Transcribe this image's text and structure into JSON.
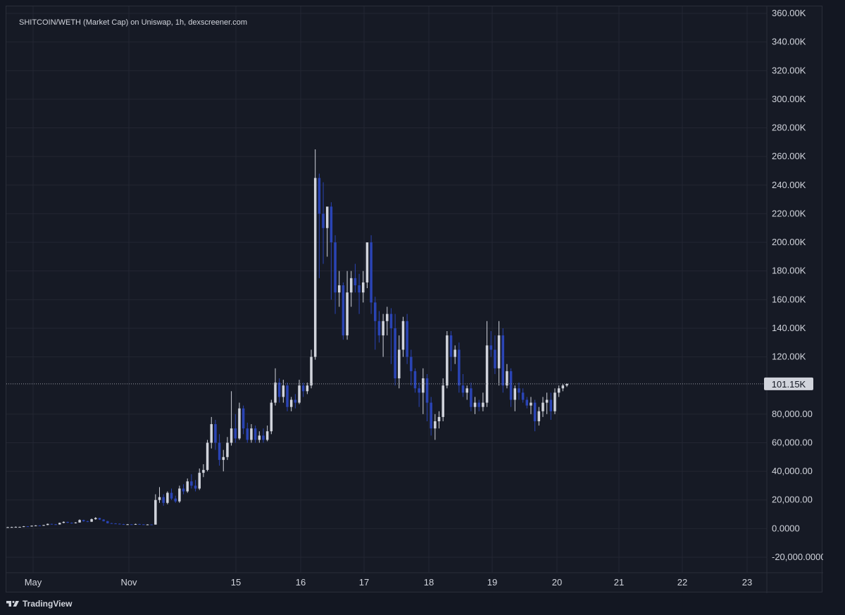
{
  "chart_title": "SHITCOIN/WETH (Market Cap) on Uniswap, 1h, dexscreener.com",
  "branding": {
    "name": "TradingView",
    "icon": "tradingview-logo-icon"
  },
  "colors": {
    "background": "#131722",
    "grid": "#232632",
    "up_candle": "#d1d4dc",
    "down_candle": "#2a44b5",
    "text": "#d1d4dc",
    "price_badge_bg": "#d1d4dc",
    "price_badge_text": "#131722"
  },
  "chart_data": {
    "type": "candlestick",
    "title": "SHITCOIN/WETH (Market Cap) on Uniswap, 1h, dexscreener.com",
    "xlabel": "",
    "ylabel": "",
    "ylim": [
      -20000,
      360000
    ],
    "grid": true,
    "x_ticks": [
      "May",
      "Nov",
      "15",
      "16",
      "17",
      "18",
      "19",
      "20",
      "21",
      "22",
      "23"
    ],
    "y_ticks": [
      {
        "value": 360000,
        "label": "360.00K"
      },
      {
        "value": 340000,
        "label": "340.00K"
      },
      {
        "value": 320000,
        "label": "320.00K"
      },
      {
        "value": 300000,
        "label": "300.00K"
      },
      {
        "value": 280000,
        "label": "280.00K"
      },
      {
        "value": 260000,
        "label": "260.00K"
      },
      {
        "value": 240000,
        "label": "240.00K"
      },
      {
        "value": 220000,
        "label": "220.00K"
      },
      {
        "value": 200000,
        "label": "200.00K"
      },
      {
        "value": 180000,
        "label": "180.00K"
      },
      {
        "value": 160000,
        "label": "160.00K"
      },
      {
        "value": 140000,
        "label": "140.00K"
      },
      {
        "value": 120000,
        "label": "120.00K"
      },
      {
        "value": 80000,
        "label": "80,000.00"
      },
      {
        "value": 60000,
        "label": "60,000.00"
      },
      {
        "value": 40000,
        "label": "40,000.00"
      },
      {
        "value": 20000,
        "label": "20,000.00"
      },
      {
        "value": 0,
        "label": "0.0000"
      },
      {
        "value": -20000,
        "label": "-20,000.0000"
      }
    ],
    "last_price": {
      "value": 101150,
      "label": "101.15K"
    },
    "ohlc": [
      [
        1000,
        1200,
        900,
        1000
      ],
      [
        1000,
        1300,
        900,
        1100
      ],
      [
        1100,
        1500,
        1000,
        1200
      ],
      [
        1200,
        1300,
        1100,
        1200
      ],
      [
        1200,
        1800,
        1100,
        1600
      ],
      [
        1600,
        1700,
        1400,
        1500
      ],
      [
        1500,
        2200,
        1400,
        2000
      ],
      [
        2000,
        2400,
        1800,
        2200
      ],
      [
        2200,
        2300,
        1900,
        2000
      ],
      [
        2000,
        2600,
        1900,
        2500
      ],
      [
        2500,
        3500,
        2400,
        3300
      ],
      [
        3300,
        3400,
        2800,
        3000
      ],
      [
        3000,
        3200,
        2700,
        2900
      ],
      [
        2900,
        4200,
        2800,
        4000
      ],
      [
        4000,
        5000,
        3800,
        4700
      ],
      [
        4700,
        4800,
        3900,
        4100
      ],
      [
        4100,
        4300,
        3500,
        3800
      ],
      [
        3800,
        4500,
        3600,
        4300
      ],
      [
        4300,
        6500,
        4200,
        6000
      ],
      [
        6000,
        6200,
        4800,
        5200
      ],
      [
        5200,
        5400,
        4500,
        4800
      ],
      [
        4800,
        7000,
        4700,
        6600
      ],
      [
        6600,
        8000,
        6200,
        7400
      ],
      [
        7400,
        7600,
        6000,
        6300
      ],
      [
        6300,
        6600,
        5000,
        5200
      ],
      [
        5200,
        5400,
        3600,
        3800
      ],
      [
        3800,
        4000,
        3400,
        3600
      ],
      [
        3600,
        3800,
        3200,
        3400
      ],
      [
        3400,
        3600,
        3000,
        3100
      ],
      [
        3100,
        3300,
        2800,
        3000
      ],
      [
        3000,
        3200,
        2800,
        3000
      ],
      [
        3000,
        3100,
        2800,
        2900
      ],
      [
        2900,
        3400,
        2700,
        3200
      ],
      [
        3200,
        3300,
        2800,
        3000
      ],
      [
        3000,
        3100,
        2600,
        2800
      ],
      [
        2800,
        3000,
        2600,
        2900
      ],
      [
        2900,
        3000,
        2600,
        2800
      ],
      [
        2800,
        24000,
        2800,
        20000
      ],
      [
        20000,
        29000,
        18000,
        22000
      ],
      [
        22000,
        24000,
        16000,
        18000
      ],
      [
        18000,
        26000,
        17000,
        25000
      ],
      [
        25000,
        28000,
        20000,
        21000
      ],
      [
        21000,
        23000,
        18000,
        19000
      ],
      [
        19000,
        30000,
        18000,
        28000
      ],
      [
        28000,
        31000,
        24000,
        26000
      ],
      [
        26000,
        35000,
        25000,
        33000
      ],
      [
        33000,
        38000,
        28000,
        30000
      ],
      [
        30000,
        34000,
        26000,
        28000
      ],
      [
        28000,
        42000,
        27000,
        39000
      ],
      [
        39000,
        45000,
        36000,
        41000
      ],
      [
        41000,
        62000,
        40000,
        60000
      ],
      [
        60000,
        78000,
        56000,
        73000
      ],
      [
        73000,
        76000,
        55000,
        60000
      ],
      [
        60000,
        66000,
        44000,
        48000
      ],
      [
        48000,
        55000,
        40000,
        50000
      ],
      [
        50000,
        64000,
        48000,
        60000
      ],
      [
        60000,
        96000,
        58000,
        70000
      ],
      [
        70000,
        80000,
        60000,
        63000
      ],
      [
        63000,
        88000,
        62000,
        84000
      ],
      [
        84000,
        86000,
        66000,
        70000
      ],
      [
        70000,
        74000,
        60000,
        62000
      ],
      [
        62000,
        73000,
        60000,
        70000
      ],
      [
        70000,
        72000,
        60000,
        62000
      ],
      [
        62000,
        68000,
        60000,
        65000
      ],
      [
        65000,
        70000,
        60000,
        62000
      ],
      [
        62000,
        72000,
        61000,
        68000
      ],
      [
        68000,
        90000,
        66000,
        88000
      ],
      [
        88000,
        112000,
        86000,
        102000
      ],
      [
        102000,
        105000,
        88000,
        92000
      ],
      [
        92000,
        104000,
        88000,
        100000
      ],
      [
        100000,
        102000,
        82000,
        85000
      ],
      [
        85000,
        92000,
        82000,
        90000
      ],
      [
        90000,
        94000,
        84000,
        88000
      ],
      [
        88000,
        104000,
        87000,
        100000
      ],
      [
        100000,
        102000,
        92000,
        96000
      ],
      [
        96000,
        102000,
        94000,
        100000
      ],
      [
        100000,
        125000,
        98000,
        120000
      ],
      [
        120000,
        265000,
        118000,
        245000
      ],
      [
        245000,
        248000,
        175000,
        220000
      ],
      [
        220000,
        242000,
        185000,
        210000
      ],
      [
        210000,
        222000,
        190000,
        225000
      ],
      [
        225000,
        228000,
        160000,
        200000
      ],
      [
        200000,
        205000,
        150000,
        165000
      ],
      [
        165000,
        180000,
        155000,
        170000
      ],
      [
        170000,
        172000,
        132000,
        135000
      ],
      [
        135000,
        180000,
        132000,
        165000
      ],
      [
        165000,
        180000,
        155000,
        175000
      ],
      [
        175000,
        185000,
        165000,
        170000
      ],
      [
        170000,
        178000,
        150000,
        165000
      ],
      [
        165000,
        180000,
        158000,
        172000
      ],
      [
        172000,
        200000,
        168000,
        200000
      ],
      [
        200000,
        205000,
        150000,
        158000
      ],
      [
        158000,
        162000,
        125000,
        145000
      ],
      [
        145000,
        152000,
        130000,
        135000
      ],
      [
        135000,
        150000,
        120000,
        145000
      ],
      [
        145000,
        155000,
        135000,
        150000
      ],
      [
        150000,
        154000,
        115000,
        140000
      ],
      [
        140000,
        150000,
        100000,
        105000
      ],
      [
        105000,
        135000,
        98000,
        125000
      ],
      [
        125000,
        148000,
        120000,
        145000
      ],
      [
        145000,
        150000,
        115000,
        120000
      ],
      [
        120000,
        125000,
        100000,
        110000
      ],
      [
        110000,
        112000,
        95000,
        98000
      ],
      [
        98000,
        102000,
        85000,
        95000
      ],
      [
        95000,
        112000,
        80000,
        105000
      ],
      [
        105000,
        108000,
        75000,
        88000
      ],
      [
        88000,
        92000,
        65000,
        70000
      ],
      [
        70000,
        80000,
        62000,
        75000
      ],
      [
        75000,
        82000,
        70000,
        78000
      ],
      [
        78000,
        105000,
        75000,
        100000
      ],
      [
        100000,
        138000,
        98000,
        135000
      ],
      [
        135000,
        138000,
        110000,
        120000
      ],
      [
        120000,
        128000,
        115000,
        125000
      ],
      [
        125000,
        130000,
        95000,
        100000
      ],
      [
        100000,
        108000,
        92000,
        95000
      ],
      [
        95000,
        100000,
        90000,
        98000
      ],
      [
        98000,
        102000,
        82000,
        85000
      ],
      [
        85000,
        92000,
        80000,
        88000
      ],
      [
        88000,
        90000,
        82000,
        85000
      ],
      [
        85000,
        95000,
        82000,
        88000
      ],
      [
        88000,
        145000,
        85000,
        128000
      ],
      [
        128000,
        138000,
        120000,
        125000
      ],
      [
        125000,
        135000,
        108000,
        112000
      ],
      [
        112000,
        145000,
        100000,
        135000
      ],
      [
        135000,
        140000,
        95000,
        100000
      ],
      [
        100000,
        115000,
        98000,
        110000
      ],
      [
        110000,
        112000,
        85000,
        90000
      ],
      [
        90000,
        100000,
        82000,
        98000
      ],
      [
        98000,
        102000,
        90000,
        95000
      ],
      [
        95000,
        98000,
        88000,
        90000
      ],
      [
        90000,
        92000,
        84000,
        86000
      ],
      [
        86000,
        92000,
        80000,
        88000
      ],
      [
        88000,
        90000,
        68000,
        75000
      ],
      [
        75000,
        85000,
        72000,
        82000
      ],
      [
        82000,
        92000,
        78000,
        88000
      ],
      [
        88000,
        95000,
        80000,
        90000
      ],
      [
        90000,
        95000,
        76000,
        82000
      ],
      [
        82000,
        98000,
        80000,
        95000
      ],
      [
        95000,
        100000,
        92000,
        98000
      ],
      [
        98000,
        101000,
        96000,
        100000
      ],
      [
        100000,
        101500,
        99000,
        101150
      ]
    ]
  }
}
